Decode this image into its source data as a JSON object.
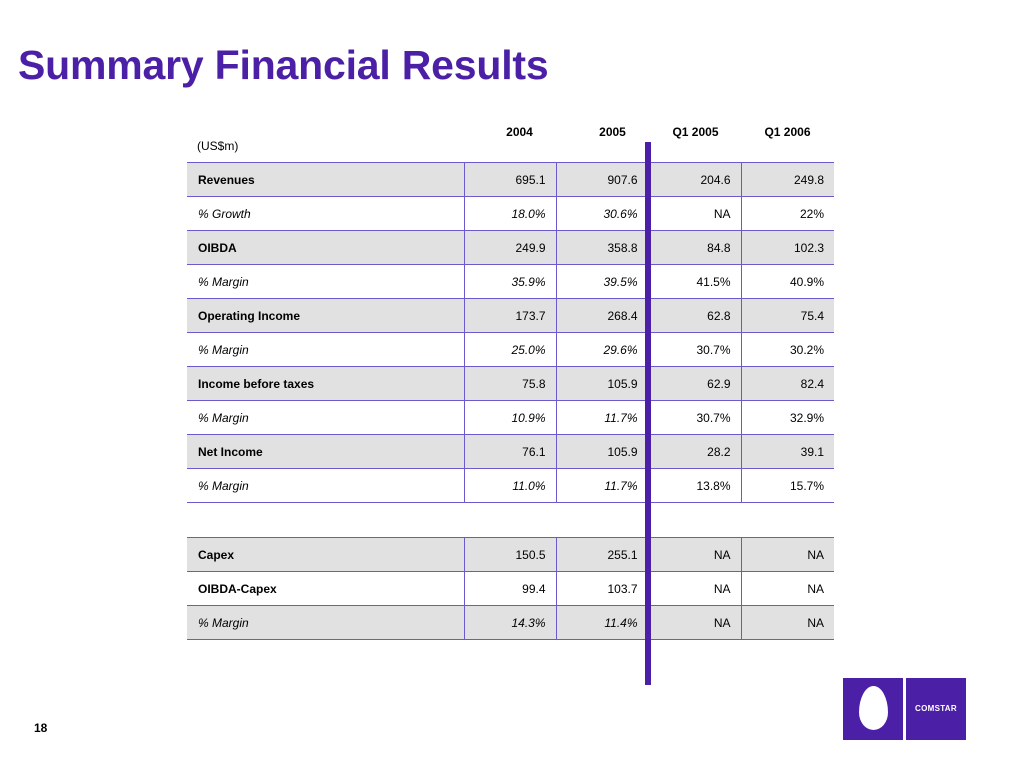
{
  "slide": {
    "title": "Summary Financial Results",
    "page_number": "18",
    "accent_color": "#4B1FA6"
  },
  "table": {
    "units": "(US$m)",
    "columns": [
      "2004",
      "2005",
      "Q1 2005",
      "Q1 2006"
    ],
    "rows": [
      {
        "label": "Revenues",
        "values": [
          "695.1",
          "907.6",
          "204.6",
          "249.8"
        ]
      },
      {
        "label": "% Growth",
        "values": [
          "18.0%",
          "30.6%",
          "NA",
          "22%"
        ]
      },
      {
        "label": "OIBDA",
        "values": [
          "249.9",
          "358.8",
          "84.8",
          "102.3"
        ]
      },
      {
        "label": "% Margin",
        "values": [
          "35.9%",
          "39.5%",
          "41.5%",
          "40.9%"
        ]
      },
      {
        "label": "Operating Income",
        "values": [
          "173.7",
          "268.4",
          "62.8",
          "75.4"
        ]
      },
      {
        "label": "% Margin",
        "values": [
          "25.0%",
          "29.6%",
          "30.7%",
          "30.2%"
        ]
      },
      {
        "label": "Income before taxes",
        "values": [
          "75.8",
          "105.9",
          "62.9",
          "82.4"
        ]
      },
      {
        "label": "% Margin",
        "values": [
          "10.9%",
          "11.7%",
          "30.7%",
          "32.9%"
        ]
      },
      {
        "label": "Net Income",
        "values": [
          "76.1",
          "105.9",
          "28.2",
          "39.1"
        ]
      },
      {
        "label": "% Margin",
        "values": [
          "11.0%",
          "11.7%",
          "13.8%",
          "15.7%"
        ]
      },
      {
        "label": "Capex",
        "values": [
          "150.5",
          "255.1",
          "NA",
          "NA"
        ]
      },
      {
        "label": "OIBDA-Capex",
        "values": [
          "99.4",
          "103.7",
          "NA",
          "NA"
        ]
      },
      {
        "label": "% Margin",
        "values": [
          "14.3%",
          "11.4%",
          "NA",
          "NA"
        ]
      }
    ]
  },
  "logo": {
    "text": "COMSTAR",
    "icon": "egg-icon"
  }
}
